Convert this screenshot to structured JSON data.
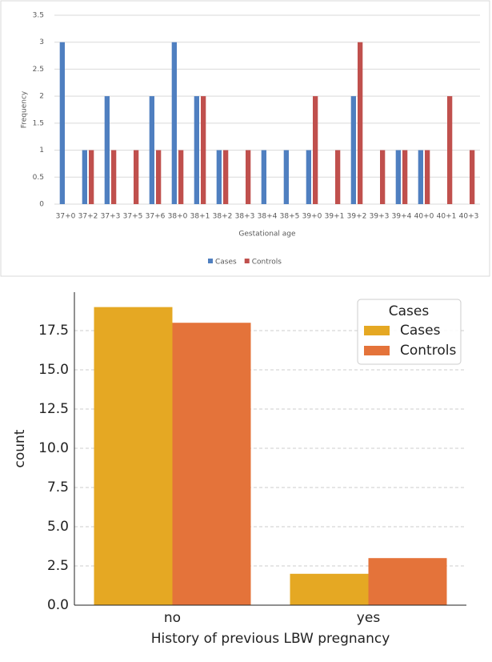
{
  "chart_data": [
    {
      "type": "bar",
      "xlabel": "Gestational age",
      "ylabel": "Frequency",
      "categories": [
        "37+0",
        "37+2",
        "37+3",
        "37+5",
        "37+6",
        "38+0",
        "38+1",
        "38+2",
        "38+3",
        "38+4",
        "38+5",
        "39+0",
        "39+1",
        "39+2",
        "39+3",
        "39+4",
        "40+0",
        "40+1",
        "40+3"
      ],
      "series": [
        {
          "name": "Cases",
          "color": "#4f7fc0",
          "values": [
            3,
            1,
            2,
            0,
            2,
            3,
            2,
            1,
            0,
            1,
            1,
            1,
            0,
            2,
            0,
            1,
            1,
            0,
            0
          ]
        },
        {
          "name": "Controls",
          "color": "#c0504d",
          "values": [
            0,
            1,
            1,
            1,
            1,
            1,
            2,
            1,
            1,
            0,
            0,
            2,
            1,
            3,
            1,
            1,
            1,
            2,
            1
          ]
        }
      ],
      "ylim": [
        0,
        3.5
      ],
      "yticks": [
        0,
        0.5,
        1,
        1.5,
        2,
        2.5,
        3,
        3.5
      ],
      "grid": true,
      "legend": "bottom"
    },
    {
      "type": "bar",
      "xlabel": "History of previous LBW pregnancy",
      "ylabel": "count",
      "categories": [
        "no",
        "yes"
      ],
      "series": [
        {
          "name": "Cases",
          "color": "#e5a823",
          "values": [
            19,
            2
          ]
        },
        {
          "name": "Controls",
          "color": "#e4733a",
          "values": [
            18,
            3
          ]
        }
      ],
      "legend_title": "Cases",
      "ylim": [
        0,
        19.95
      ],
      "yticks": [
        {
          "value": 0,
          "label": "0.0"
        },
        2.5,
        {
          "value": 5,
          "label": "5.0"
        },
        7.5,
        {
          "value": 10,
          "label": "10.0"
        },
        12.5,
        {
          "value": 15,
          "label": "15.0"
        },
        17.5
      ],
      "grid": true,
      "legend": "upper right"
    }
  ]
}
